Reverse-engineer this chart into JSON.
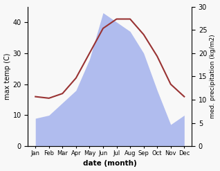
{
  "months": [
    "Jan",
    "Feb",
    "Mar",
    "Apr",
    "May",
    "Jun",
    "Jul",
    "Aug",
    "Sep",
    "Oct",
    "Nov",
    "Dec"
  ],
  "temperature": [
    16,
    15.5,
    17,
    22,
    30,
    38,
    41,
    41,
    36,
    29,
    20,
    16
  ],
  "precipitation": [
    9,
    10,
    14,
    18,
    28,
    43,
    40,
    37,
    30,
    18,
    7,
    10
  ],
  "temp_color": "#993333",
  "precip_color": "#b0bcee",
  "temp_ylim": [
    0,
    45
  ],
  "precip_ylim": [
    0,
    45
  ],
  "right_ylim": [
    0,
    30
  ],
  "temp_yticks": [
    0,
    10,
    20,
    30,
    40
  ],
  "right_yticks": [
    0,
    5,
    10,
    15,
    20,
    25,
    30
  ],
  "xlabel": "date (month)",
  "ylabel_left": "max temp (C)",
  "ylabel_right": "med. precipitation (kg/m2)",
  "background_color": "#f8f8f8"
}
